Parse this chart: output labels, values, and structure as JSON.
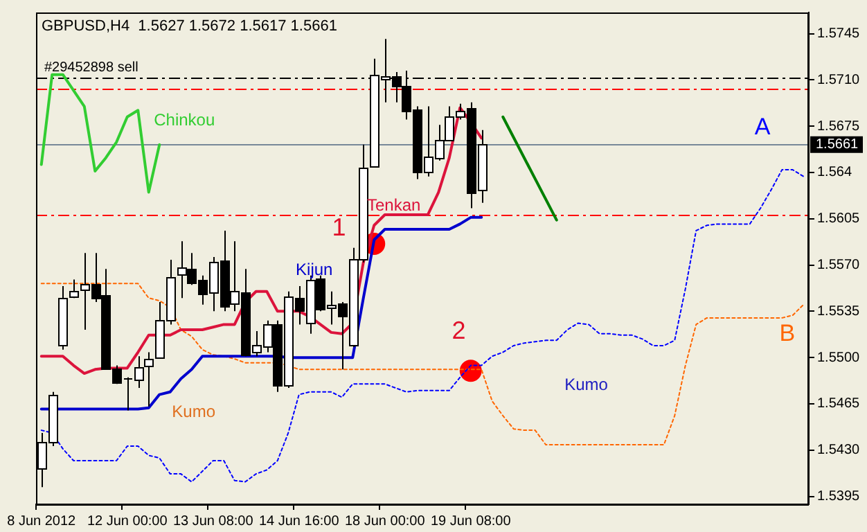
{
  "chart_data": {
    "type": "candlestick",
    "title": "GBPUSD,H4  1.5627 1.5672 1.5617 1.5661",
    "categories": [
      "8 Jun 2012",
      null,
      null,
      null,
      null,
      null,
      null,
      null,
      "12 Jun 00:00",
      null,
      null,
      null,
      null,
      null,
      null,
      null,
      "13 Jun 08:00",
      null,
      null,
      null,
      null,
      null,
      null,
      null,
      "14 Jun 16:00",
      null,
      null,
      null,
      null,
      null,
      null,
      null,
      "18 Jun 00:00",
      null,
      null,
      null,
      null,
      null,
      null,
      null,
      "19 Jun 08:00",
      null,
      null,
      null,
      null,
      null,
      null,
      null,
      null,
      null,
      null,
      null,
      null,
      null,
      null,
      null,
      null,
      null,
      null,
      null,
      null,
      null,
      null,
      null,
      null,
      null,
      null,
      null,
      null,
      null,
      null,
      null
    ],
    "ohlc": [
      [
        1.5416,
        1.5443,
        1.5402,
        1.5436
      ],
      [
        1.5436,
        1.5474,
        1.5433,
        1.5472
      ],
      [
        1.5509,
        1.5554,
        1.5506,
        1.5545
      ],
      [
        1.5546,
        1.5559,
        1.5545,
        1.555
      ],
      [
        1.5551,
        1.5579,
        1.5521,
        1.5556
      ],
      [
        1.5556,
        1.5579,
        1.5542,
        1.5545
      ],
      [
        1.5547,
        1.5567,
        1.5491,
        1.5492
      ],
      [
        1.5492,
        1.5494,
        1.548,
        1.5481
      ],
      [
        1.5484,
        1.5485,
        1.546,
        1.5484
      ],
      [
        1.5483,
        1.5501,
        1.5477,
        1.5493
      ],
      [
        1.5494,
        1.5504,
        1.5463,
        1.5499
      ],
      [
        1.55,
        1.5542,
        1.5499,
        1.5528
      ],
      [
        1.5528,
        1.5574,
        1.5525,
        1.5561
      ],
      [
        1.5563,
        1.5588,
        1.5545,
        1.5568
      ],
      [
        1.5567,
        1.5579,
        1.5555,
        1.5557
      ],
      [
        1.5559,
        1.5562,
        1.554,
        1.5548
      ],
      [
        1.5549,
        1.5576,
        1.5535,
        1.5572
      ],
      [
        1.5573,
        1.5596,
        1.5535,
        1.5539
      ],
      [
        1.5541,
        1.5588,
        1.5535,
        1.555
      ],
      [
        1.5549,
        1.5567,
        1.5501,
        1.5502
      ],
      [
        1.5504,
        1.552,
        1.5501,
        1.5509
      ],
      [
        1.5508,
        1.5528,
        1.5504,
        1.5525
      ],
      [
        1.5525,
        1.5528,
        1.5474,
        1.5479
      ],
      [
        1.5479,
        1.555,
        1.5477,
        1.5546
      ],
      [
        1.5545,
        1.5554,
        1.5525,
        1.5536
      ],
      [
        1.5526,
        1.5562,
        1.5518,
        1.5559
      ],
      [
        1.556,
        1.5562,
        1.5535,
        1.5537
      ],
      [
        1.5538,
        1.555,
        1.5525,
        1.554
      ],
      [
        1.5541,
        1.5542,
        1.5491,
        1.5532
      ],
      [
        1.5509,
        1.5583,
        1.5508,
        1.5574
      ],
      [
        1.5574,
        1.5661,
        1.5572,
        1.5644
      ],
      [
        1.5645,
        1.5726,
        1.5644,
        1.5714
      ],
      [
        1.5711,
        1.5741,
        1.5693,
        1.5713
      ],
      [
        1.5713,
        1.5716,
        1.5693,
        1.5705
      ],
      [
        1.5705,
        1.5717,
        1.568,
        1.5687
      ],
      [
        1.5688,
        1.569,
        1.5635,
        1.564
      ],
      [
        1.5641,
        1.569,
        1.5637,
        1.5652
      ],
      [
        1.5651,
        1.5676,
        1.5649,
        1.5665
      ],
      [
        1.5665,
        1.569,
        1.5664,
        1.5682
      ],
      [
        1.5682,
        1.5692,
        1.568,
        1.5687
      ],
      [
        1.5689,
        1.5693,
        1.5613,
        1.5625
      ],
      [
        1.5627,
        1.5672,
        1.5617,
        1.5661
      ],
      null,
      null,
      null,
      null,
      null,
      null,
      null,
      null,
      null,
      null,
      null,
      null,
      null,
      null,
      null,
      null,
      null,
      null,
      null,
      null,
      null,
      null,
      null,
      null,
      null,
      null,
      null,
      null,
      null,
      null
    ],
    "series": [
      {
        "name": "Tenkan",
        "type": "line",
        "color": "#dc143c",
        "values": [
          1.5501,
          1.5501,
          1.5501,
          1.5494,
          1.5488,
          1.5491,
          1.5492,
          1.5492,
          1.5492,
          1.5504,
          1.5517,
          1.5517,
          1.5517,
          1.5521,
          1.5521,
          1.5521,
          1.5523,
          1.5525,
          1.5525,
          1.5542,
          1.555,
          1.555,
          1.5535,
          1.5535,
          1.5535,
          1.5531,
          1.5525,
          1.5519,
          1.5518,
          1.5526,
          1.5572,
          1.56,
          1.5608,
          1.5608,
          1.5608,
          1.5608,
          1.5608,
          1.5625,
          1.5651,
          1.5689,
          1.5678,
          1.5666,
          null,
          null,
          null,
          null,
          null,
          null,
          null,
          null,
          null,
          null,
          null,
          null,
          null,
          null,
          null,
          null,
          null,
          null,
          null,
          null,
          null,
          null,
          null,
          null,
          null,
          null,
          null,
          null,
          null,
          null
        ]
      },
      {
        "name": "Kijun",
        "type": "line",
        "color": "#0000cd",
        "values": [
          1.5461,
          1.5461,
          1.5461,
          1.5461,
          1.5461,
          1.5461,
          1.5461,
          1.5461,
          1.5461,
          1.5461,
          1.5462,
          1.5472,
          1.5474,
          1.5484,
          1.5491,
          1.5501,
          1.5501,
          1.5501,
          1.5501,
          1.5501,
          1.5501,
          1.5501,
          1.5501,
          1.55,
          1.55,
          1.55,
          1.55,
          1.55,
          1.55,
          1.55,
          1.5545,
          1.5589,
          1.5597,
          1.5597,
          1.5597,
          1.5597,
          1.5597,
          1.5597,
          1.5597,
          1.5601,
          1.5606,
          1.5606,
          null,
          null,
          null,
          null,
          null,
          null,
          null,
          null,
          null,
          null,
          null,
          null,
          null,
          null,
          null,
          null,
          null,
          null,
          null,
          null,
          null,
          null,
          null,
          null,
          null,
          null,
          null,
          null,
          null,
          null
        ]
      },
      {
        "name": "Chinkou",
        "type": "line",
        "color": "#32cd32",
        "values": [
          1.5646,
          1.5714,
          1.5714,
          1.5702,
          1.569,
          1.5641,
          1.5651,
          1.5663,
          1.5682,
          1.5687,
          1.5625,
          1.5661,
          null,
          null,
          null,
          null,
          null,
          null,
          null,
          null,
          null,
          null,
          null,
          null,
          null,
          null,
          null,
          null,
          null,
          null,
          null,
          null,
          null,
          null,
          null,
          null,
          null,
          null,
          null,
          null,
          null,
          null,
          null,
          null,
          null,
          null,
          null,
          null,
          null,
          null,
          null,
          null,
          null,
          null,
          null,
          null,
          null,
          null,
          null,
          null,
          null,
          null,
          null,
          null,
          null,
          null,
          null,
          null,
          null,
          null,
          null,
          null
        ]
      },
      {
        "name": "A",
        "type": "line",
        "color": "#0000ff",
        "line_style": "dotted",
        "values": [
          1.5445,
          1.5443,
          1.5431,
          1.5422,
          1.5422,
          1.5422,
          1.5422,
          1.5422,
          1.5433,
          1.5433,
          1.5426,
          1.5424,
          1.5412,
          1.5412,
          1.5406,
          1.5414,
          1.5422,
          1.5422,
          1.5407,
          1.5406,
          1.5412,
          1.5415,
          1.5422,
          1.5443,
          1.5472,
          1.5474,
          1.5474,
          1.5474,
          1.547,
          1.548,
          1.548,
          1.548,
          1.548,
          1.5477,
          1.5474,
          1.5475,
          1.5475,
          1.5475,
          1.5475,
          1.5485,
          1.5494,
          1.5494,
          1.5501,
          1.5504,
          1.5509,
          1.5511,
          1.5512,
          1.5513,
          1.5513,
          1.5521,
          1.5526,
          1.5525,
          1.5518,
          1.5518,
          1.5517,
          1.5517,
          1.5514,
          1.5509,
          1.5509,
          1.5513,
          1.5552,
          1.5596,
          1.56,
          1.5601,
          1.5601,
          1.5601,
          1.5601,
          1.5613,
          1.5627,
          1.5642,
          1.5642,
          1.5637
        ]
      },
      {
        "name": "B",
        "type": "line",
        "color": "#ff6600",
        "line_style": "dotted",
        "values": [
          1.5556,
          1.5556,
          1.5556,
          1.5556,
          1.5556,
          1.5556,
          1.5556,
          1.5556,
          1.5556,
          1.5556,
          1.5545,
          1.5543,
          1.5538,
          1.5521,
          1.5516,
          1.5506,
          1.5502,
          1.5501,
          1.5499,
          1.5496,
          1.5496,
          1.5496,
          1.5496,
          1.5494,
          1.5491,
          1.5491,
          1.5491,
          1.5491,
          1.5491,
          1.5491,
          1.5491,
          1.5491,
          1.5491,
          1.5491,
          1.5491,
          1.5491,
          1.5491,
          1.5491,
          1.5491,
          1.5491,
          1.5491,
          1.5491,
          1.5467,
          1.5456,
          1.5446,
          1.5445,
          1.5445,
          1.5434,
          1.5434,
          1.5434,
          1.5434,
          1.5434,
          1.5434,
          1.5434,
          1.5434,
          1.5434,
          1.5434,
          1.5434,
          1.5434,
          1.5456,
          1.5494,
          1.5525,
          1.553,
          1.553,
          1.553,
          1.553,
          1.553,
          1.553,
          1.553,
          1.553,
          1.5532,
          1.554
        ]
      },
      {
        "type": "scatter",
        "color": "#ff0000",
        "marker": "circle",
        "values": [
          null,
          null,
          null,
          null,
          null,
          null,
          null,
          null,
          null,
          null,
          null,
          null,
          null,
          null,
          null,
          null,
          null,
          null,
          null,
          null,
          null,
          null,
          null,
          null,
          null,
          null,
          null,
          null,
          null,
          null,
          null,
          1.5586,
          null,
          null,
          null,
          null,
          null,
          null,
          null,
          null,
          1.549,
          null,
          null,
          null,
          null,
          null,
          null,
          null,
          null,
          null,
          null,
          null,
          null,
          null,
          null,
          null,
          null,
          null,
          null,
          null,
          null,
          null,
          null,
          null,
          null,
          null,
          null,
          null,
          null,
          null,
          null,
          null
        ]
      },
      {
        "type": "line",
        "color": "#008000",
        "values": [
          null,
          null,
          null,
          null,
          null,
          null,
          null,
          null,
          null,
          null,
          null,
          null,
          null,
          null,
          null,
          null,
          null,
          null,
          null,
          null,
          null,
          null,
          null,
          null,
          null,
          null,
          null,
          null,
          null,
          null,
          null,
          null,
          null,
          null,
          null,
          null,
          null,
          null,
          null,
          null,
          null,
          null,
          null,
          1.5682,
          null,
          null,
          null,
          null,
          1.5604,
          null,
          null,
          null,
          null,
          null,
          null,
          null,
          null,
          null,
          null,
          null,
          null,
          null,
          null,
          null,
          null,
          null,
          null,
          null,
          null,
          null,
          null,
          null
        ]
      }
    ],
    "ylim": [
      1.5389,
      1.5761
    ],
    "yticks": [
      1.5395,
      {
        "value": 1.543,
        "label": "1.5430"
      },
      1.5465,
      {
        "value": 1.55,
        "label": "1.5500"
      },
      1.5535,
      {
        "value": 1.557,
        "label": "1.5570"
      },
      1.5605,
      1.564,
      1.5675,
      {
        "value": 1.571,
        "label": "1.5710"
      },
      1.5745
    ],
    "ref_lines": [
      {
        "axis": "y",
        "value": 1.5661,
        "label": "1.5661",
        "color": "#778899",
        "line_style": "solid"
      },
      {
        "axis": "y",
        "value": 1.5712,
        "label": "#29452898 sell",
        "color": "#000000",
        "line_style": "dashed"
      },
      {
        "axis": "y",
        "value": 1.5703,
        "color": "#ff0000",
        "line_style": "dashed"
      },
      {
        "axis": "y",
        "value": 1.5608,
        "color": "#ff0000",
        "line_style": "dashed"
      }
    ],
    "annotations": [
      "Kumo",
      "Kumo",
      "1",
      {
        "text": "2",
        "y": 1.549
      }
    ],
    "grid": false,
    "legend": false
  }
}
